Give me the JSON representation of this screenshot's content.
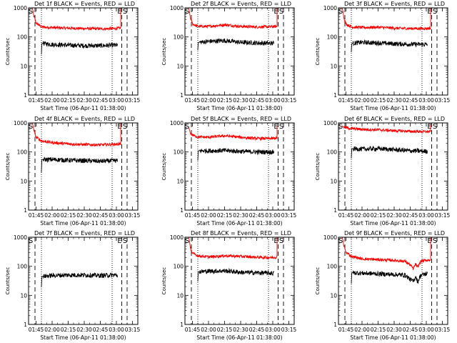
{
  "chart_data": [
    {
      "type": "line",
      "title": "Det 1f BLACK = Events, RED = LLD",
      "xlabel": "Start Time (06-Apr-11 01:38:00)",
      "ylabel": "Counts/sec",
      "yscale": "log",
      "ylim": [
        1,
        1000
      ],
      "ytick_labels": [
        "1",
        "10",
        "100",
        "1000"
      ],
      "xtick_labels": [
        "01:45",
        "02:00",
        "02:15",
        "02:30",
        "02:45",
        "03:00",
        "03:15"
      ],
      "xtick_minutes": [
        105,
        120,
        135,
        150,
        165,
        180,
        195
      ],
      "xlim_minutes": [
        98,
        200
      ],
      "markers": [
        {
          "label": "E",
          "x": 185
        },
        {
          "label": "S",
          "x": 190
        }
      ],
      "dashed_lines": [
        104,
        185,
        190
      ],
      "dotted_lines": [
        110,
        176
      ],
      "series": [
        {
          "color": "#ff0000",
          "x": [
            101.5,
            103,
            105,
            110,
            120,
            135,
            150,
            165,
            180,
            184
          ],
          "y": [
            1000,
            500,
            300,
            220,
            210,
            200,
            195,
            190,
            195,
            200
          ],
          "rise_to": 1000
        },
        {
          "color": "#000000",
          "x": [
            110,
            110.5,
            120,
            135,
            150,
            165,
            180,
            181
          ],
          "y": [
            25,
            60,
            55,
            52,
            50,
            50,
            52,
            50
          ]
        }
      ]
    },
    {
      "type": "line",
      "title": "Det 2f BLACK = Events, RED = LLD",
      "xlabel": "Start Time (06-Apr-11 01:38:00)",
      "ylabel": "Counts/sec",
      "yscale": "log",
      "ylim": [
        1,
        1000
      ],
      "ytick_labels": [
        "1",
        "10",
        "100",
        "1000"
      ],
      "xtick_labels": [
        "01:45",
        "02:00",
        "02:15",
        "02:30",
        "02:45",
        "03:00",
        "03:15"
      ],
      "xtick_minutes": [
        105,
        120,
        135,
        150,
        165,
        180,
        195
      ],
      "xlim_minutes": [
        98,
        200
      ],
      "markers": [
        {
          "label": "E",
          "x": 185
        },
        {
          "label": "S",
          "x": 190
        }
      ],
      "dashed_lines": [
        104,
        185,
        190
      ],
      "dotted_lines": [
        110,
        176
      ],
      "series": [
        {
          "color": "#ff0000",
          "x": [
            101.5,
            103,
            105,
            110,
            120,
            135,
            150,
            165,
            180,
            184
          ],
          "y": [
            1000,
            450,
            280,
            230,
            230,
            260,
            230,
            220,
            225,
            230
          ],
          "rise_to": 1000
        },
        {
          "color": "#000000",
          "x": [
            110,
            110.5,
            120,
            135,
            150,
            165,
            180,
            181
          ],
          "y": [
            35,
            65,
            70,
            75,
            65,
            62,
            60,
            60
          ]
        }
      ]
    },
    {
      "type": "line",
      "title": "Det 3f BLACK = Events, RED = LLD",
      "xlabel": "Start Time (06-Apr-11 01:38:00)",
      "ylabel": "Counts/sec",
      "yscale": "log",
      "ylim": [
        1,
        1000
      ],
      "ytick_labels": [
        "1",
        "10",
        "100",
        "1000"
      ],
      "xtick_labels": [
        "01:45",
        "02:00",
        "02:15",
        "02:30",
        "02:45",
        "03:00",
        "03:15"
      ],
      "xtick_minutes": [
        105,
        120,
        135,
        150,
        165,
        180,
        195
      ],
      "xlim_minutes": [
        98,
        200
      ],
      "markers": [
        {
          "label": "E",
          "x": 185
        },
        {
          "label": "S",
          "x": 190
        }
      ],
      "dashed_lines": [
        104,
        185,
        190
      ],
      "dotted_lines": [
        110,
        176
      ],
      "series": [
        {
          "color": "#ff0000",
          "x": [
            101.5,
            103,
            105,
            110,
            120,
            135,
            150,
            165,
            180,
            184
          ],
          "y": [
            1000,
            450,
            280,
            220,
            210,
            215,
            200,
            195,
            195,
            200
          ],
          "rise_to": 1000
        },
        {
          "color": "#000000",
          "x": [
            110,
            110.5,
            120,
            135,
            150,
            165,
            180,
            181
          ],
          "y": [
            30,
            60,
            65,
            62,
            58,
            56,
            55,
            55
          ]
        }
      ]
    },
    {
      "type": "line",
      "title": "Det 4f BLACK = Events, RED = LLD",
      "xlabel": "Start Time (06-Apr-11 01:38:00)",
      "ylabel": "Counts/sec",
      "yscale": "log",
      "ylim": [
        1,
        1000
      ],
      "ytick_labels": [
        "1",
        "10",
        "100",
        "1000"
      ],
      "xtick_labels": [
        "01:45",
        "02:00",
        "02:15",
        "02:30",
        "02:45",
        "03:00",
        "03:15"
      ],
      "xtick_minutes": [
        105,
        120,
        135,
        150,
        165,
        180,
        195
      ],
      "xlim_minutes": [
        98,
        200
      ],
      "markers": [
        {
          "label": "E",
          "x": 185
        },
        {
          "label": "S",
          "x": 190
        }
      ],
      "dashed_lines": [
        104,
        185,
        190
      ],
      "dotted_lines": [
        110,
        176
      ],
      "series": [
        {
          "color": "#ff0000",
          "x": [
            101.5,
            103,
            105,
            110,
            120,
            135,
            150,
            165,
            180,
            184
          ],
          "y": [
            1000,
            550,
            320,
            240,
            210,
            190,
            180,
            175,
            185,
            190
          ],
          "rise_to": 1000
        },
        {
          "color": "#000000",
          "x": [
            110,
            110.5,
            120,
            135,
            150,
            165,
            180,
            181
          ],
          "y": [
            20,
            55,
            55,
            52,
            50,
            48,
            50,
            50
          ]
        }
      ]
    },
    {
      "type": "line",
      "title": "Det 5f BLACK = Events, RED = LLD",
      "xlabel": "Start Time (06-Apr-11 01:38:00)",
      "ylabel": "Counts/sec",
      "yscale": "log",
      "ylim": [
        1,
        1000
      ],
      "ytick_labels": [
        "1",
        "10",
        "100",
        "1000"
      ],
      "xtick_labels": [
        "01:45",
        "02:00",
        "02:15",
        "02:30",
        "02:45",
        "03:00",
        "03:15"
      ],
      "xtick_minutes": [
        105,
        120,
        135,
        150,
        165,
        180,
        195
      ],
      "xlim_minutes": [
        98,
        200
      ],
      "markers": [
        {
          "label": "E",
          "x": 185
        },
        {
          "label": "S",
          "x": 190
        }
      ],
      "dashed_lines": [
        104,
        185,
        190
      ],
      "dotted_lines": [
        110,
        176
      ],
      "series": [
        {
          "color": "#ff0000",
          "x": [
            101.5,
            103,
            105,
            110,
            120,
            135,
            150,
            165,
            180,
            184
          ],
          "y": [
            700,
            450,
            380,
            330,
            320,
            360,
            320,
            290,
            290,
            300
          ],
          "rise_to": 800
        },
        {
          "color": "#000000",
          "x": [
            110,
            110.5,
            120,
            135,
            150,
            165,
            180,
            181
          ],
          "y": [
            50,
            110,
            110,
            112,
            105,
            100,
            100,
            100
          ]
        }
      ]
    },
    {
      "type": "line",
      "title": "Det 6f BLACK = Events, RED = LLD",
      "xlabel": "Start Time (06-Apr-11 01:38:00)",
      "ylabel": "Counts/sec",
      "yscale": "log",
      "ylim": [
        1,
        1000
      ],
      "ytick_labels": [
        "1",
        "10",
        "100",
        "1000"
      ],
      "xtick_labels": [
        "01:45",
        "02:00",
        "02:15",
        "02:30",
        "02:45",
        "03:00",
        "03:15"
      ],
      "xtick_minutes": [
        105,
        120,
        135,
        150,
        165,
        180,
        195
      ],
      "xlim_minutes": [
        98,
        200
      ],
      "markers": [
        {
          "label": "E",
          "x": 185
        },
        {
          "label": "S",
          "x": 190
        }
      ],
      "dashed_lines": [
        104,
        185,
        190
      ],
      "dotted_lines": [
        110,
        176
      ],
      "series": [
        {
          "color": "#ff0000",
          "x": [
            101.5,
            103,
            105,
            110,
            120,
            135,
            150,
            165,
            180,
            184
          ],
          "y": [
            800,
            720,
            680,
            640,
            600,
            580,
            540,
            510,
            500,
            500
          ],
          "rise_to": 900
        },
        {
          "color": "#000000",
          "x": [
            110,
            110.5,
            120,
            135,
            150,
            165,
            180,
            181
          ],
          "y": [
            60,
            130,
            125,
            130,
            120,
            110,
            105,
            105
          ]
        }
      ]
    },
    {
      "type": "line",
      "title": "Det 7f BLACK = Events, RED = LLD",
      "xlabel": "Start Time (06-Apr-11 01:38:00)",
      "ylabel": "Counts/sec",
      "yscale": "log",
      "ylim": [
        1,
        1000
      ],
      "ytick_labels": [
        "1",
        "10",
        "100",
        "1000"
      ],
      "xtick_labels": [
        "01:45",
        "02:00",
        "02:15",
        "02:30",
        "02:45",
        "03:00",
        "03:15"
      ],
      "xtick_minutes": [
        105,
        120,
        135,
        150,
        165,
        180,
        195
      ],
      "xlim_minutes": [
        98,
        200
      ],
      "markers": [
        {
          "label": "E",
          "x": 185
        },
        {
          "label": "S",
          "x": 190
        }
      ],
      "dashed_lines": [
        104,
        185,
        190
      ],
      "dotted_lines": [
        110,
        176
      ],
      "series": [
        {
          "color": "#000000",
          "x": [
            110,
            110.5,
            120,
            135,
            150,
            165,
            180,
            181
          ],
          "y": [
            20,
            45,
            48,
            50,
            50,
            48,
            50,
            48
          ]
        }
      ]
    },
    {
      "type": "line",
      "title": "Det 8f BLACK = Events, RED = LLD",
      "xlabel": "Start Time (06-Apr-11 01:38:00)",
      "ylabel": "Counts/sec",
      "yscale": "log",
      "ylim": [
        1,
        1000
      ],
      "ytick_labels": [
        "1",
        "10",
        "100",
        "1000"
      ],
      "xtick_labels": [
        "01:45",
        "02:00",
        "02:15",
        "02:30",
        "02:45",
        "03:00",
        "03:15"
      ],
      "xtick_minutes": [
        105,
        120,
        135,
        150,
        165,
        180,
        195
      ],
      "xlim_minutes": [
        98,
        200
      ],
      "markers": [
        {
          "label": "E",
          "x": 185
        },
        {
          "label": "S",
          "x": 190
        }
      ],
      "dashed_lines": [
        104,
        185,
        190
      ],
      "dotted_lines": [
        110,
        176
      ],
      "series": [
        {
          "color": "#ff0000",
          "x": [
            101.5,
            103,
            105,
            110,
            120,
            135,
            150,
            165,
            180,
            184
          ],
          "y": [
            1000,
            450,
            280,
            230,
            210,
            230,
            220,
            205,
            200,
            210
          ],
          "rise_to": 1000
        },
        {
          "color": "#000000",
          "x": [
            110,
            110.5,
            120,
            135,
            150,
            165,
            180,
            181
          ],
          "y": [
            30,
            65,
            68,
            70,
            62,
            60,
            58,
            58
          ]
        }
      ]
    },
    {
      "type": "line",
      "title": "Det 9f BLACK = Events, RED = LLD",
      "xlabel": "Start Time (06-Apr-11 01:38:00)",
      "ylabel": "Counts/sec",
      "yscale": "log",
      "ylim": [
        1,
        1000
      ],
      "ytick_labels": [
        "1",
        "10",
        "100",
        "1000"
      ],
      "xtick_labels": [
        "01:45",
        "02:00",
        "02:15",
        "02:30",
        "02:45",
        "03:00",
        "03:15"
      ],
      "xtick_minutes": [
        105,
        120,
        135,
        150,
        165,
        180,
        195
      ],
      "xlim_minutes": [
        98,
        200
      ],
      "markers": [
        {
          "label": "E",
          "x": 185
        },
        {
          "label": "S",
          "x": 190
        }
      ],
      "dashed_lines": [
        104,
        185,
        190
      ],
      "dotted_lines": [
        110,
        176
      ],
      "series": [
        {
          "color": "#ff0000",
          "x": [
            101.5,
            103,
            105,
            110,
            120,
            135,
            150,
            160,
            165,
            168,
            170,
            172,
            175,
            180,
            184
          ],
          "y": [
            1000,
            500,
            300,
            220,
            180,
            170,
            160,
            150,
            110,
            80,
            120,
            90,
            150,
            160,
            170
          ],
          "rise_to": 1000
        },
        {
          "color": "#000000",
          "x": [
            110,
            110.5,
            120,
            135,
            150,
            160,
            165,
            168,
            170,
            172,
            175,
            180,
            181
          ],
          "y": [
            25,
            60,
            58,
            55,
            52,
            50,
            35,
            30,
            45,
            28,
            50,
            55,
            55
          ]
        }
      ]
    }
  ]
}
